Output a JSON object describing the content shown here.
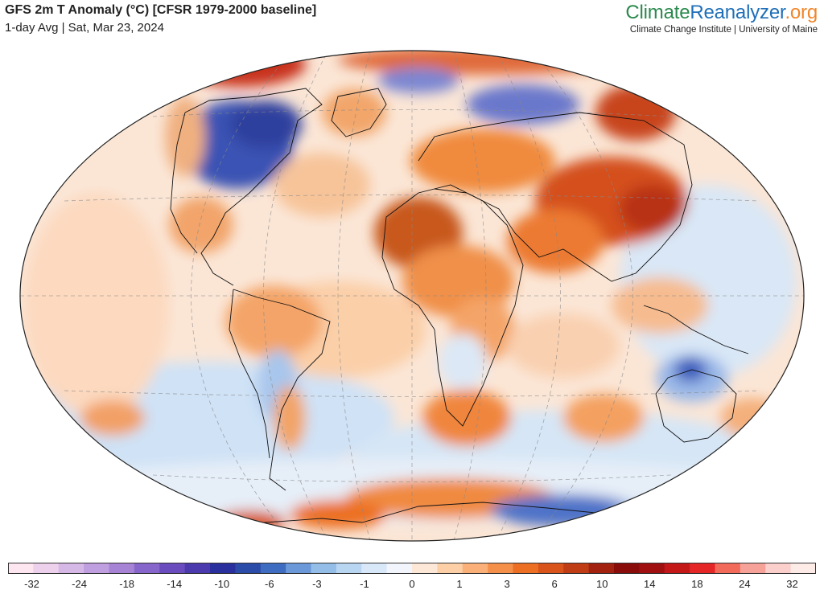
{
  "header": {
    "title": "GFS 2m T Anomaly (°C) [CFSR 1979-2000 baseline]",
    "subtitle": "1-day Avg | Sat, Mar 23, 2024"
  },
  "brand": {
    "part1": "Climate",
    "part2": "Reanalyzer",
    "part3": ".org",
    "tagline": "Climate Change Institute | University of Maine"
  },
  "colorbar": {
    "colors": [
      "#fde6f0",
      "#ecd0ec",
      "#d6b8e6",
      "#c09fe0",
      "#a783d6",
      "#8766cc",
      "#6a4cbe",
      "#4a3aae",
      "#2a2f9e",
      "#2a4ca8",
      "#3d6cc0",
      "#6a98d8",
      "#94bde8",
      "#b8d6f2",
      "#d8e8f8",
      "#f2f6fc",
      "#fde8d8",
      "#fccfa6",
      "#fab078",
      "#f5904a",
      "#ec6f24",
      "#d8541a",
      "#bf3c14",
      "#a3220f",
      "#8a0c0a",
      "#a01010",
      "#c41818",
      "#e42626",
      "#f26a5a",
      "#f7a298",
      "#fbd0cc",
      "#fdebe8"
    ],
    "tick_labels": [
      "-32",
      "-24",
      "-18",
      "-14",
      "-10",
      "-6",
      "-3",
      "-1",
      "0",
      "1",
      "3",
      "6",
      "10",
      "14",
      "18",
      "24",
      "32"
    ]
  }
}
